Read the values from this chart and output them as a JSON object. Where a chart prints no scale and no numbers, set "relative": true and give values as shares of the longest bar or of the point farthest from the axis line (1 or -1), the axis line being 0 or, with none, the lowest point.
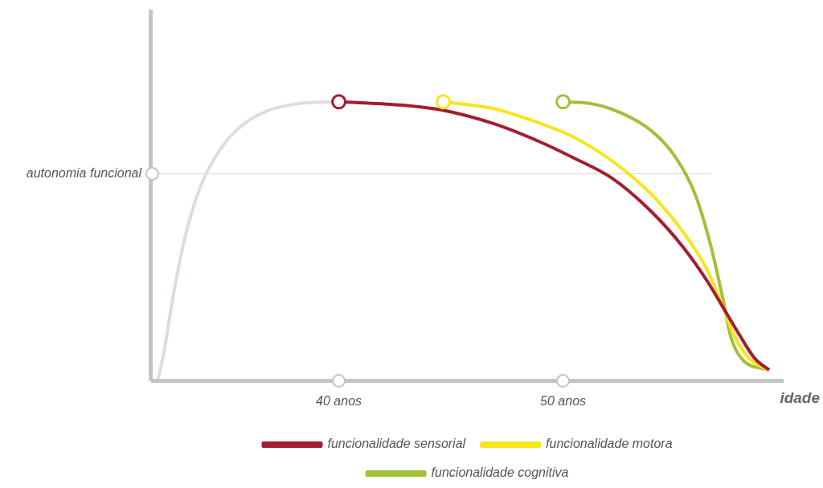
{
  "chart_data": {
    "type": "line",
    "relative": true,
    "xlabel": "idade",
    "xlim": [
      31.7,
      59.8
    ],
    "xticks": [
      {
        "value": 40,
        "label": "40 anos"
      },
      {
        "value": 50,
        "label": "50 anos"
      }
    ],
    "grid": false,
    "legend": "bottom",
    "line_style": "solid",
    "ref_lines": [
      {
        "axis": "y",
        "value": 0.742,
        "label": "autonomia funcional",
        "color": "#d8d8d8"
      }
    ],
    "series": [
      {
        "color": "#dcdce4",
        "x": [
          31.94,
          32.2,
          32.58,
          33.11,
          33.82,
          34.7,
          35.58,
          36.64,
          38.06,
          40
        ],
        "values": [
          0.008,
          0.102,
          0.29,
          0.505,
          0.694,
          0.828,
          0.909,
          0.962,
          0.992,
          1
        ]
      },
      {
        "name": "funcionalidade sensorial",
        "color": "#a51c30",
        "x": [
          40,
          42.65,
          44.63,
          46.89,
          49.01,
          50.42,
          52.19,
          53.96,
          55.37,
          56.43,
          57.14,
          57.84,
          58.55,
          59.19
        ],
        "values": [
          1,
          0.989,
          0.97,
          0.922,
          0.855,
          0.801,
          0.726,
          0.605,
          0.478,
          0.358,
          0.263,
          0.169,
          0.081,
          0.04
        ]
      },
      {
        "name": "funcionalidade motora",
        "color": "#f5e61e",
        "x": [
          44.66,
          46.89,
          49.01,
          50.42,
          52.19,
          53.96,
          55.37,
          56.43,
          57.14,
          57.67,
          58.37,
          59.19
        ],
        "values": [
          1,
          0.976,
          0.922,
          0.876,
          0.788,
          0.667,
          0.532,
          0.398,
          0.263,
          0.156,
          0.075,
          0.04
        ]
      },
      {
        "name": "funcionalidade cognitiva",
        "color": "#a4bf3a",
        "x": [
          50,
          51.13,
          52.54,
          53.96,
          55.02,
          55.9,
          56.61,
          57.14,
          57.49,
          58.02,
          59.19
        ],
        "values": [
          1,
          0.995,
          0.962,
          0.895,
          0.801,
          0.667,
          0.478,
          0.29,
          0.156,
          0.075,
          0.04
        ]
      },
      {
        "type": "scatter",
        "color": "#a51c30",
        "marker": "circle",
        "x": [
          40
        ],
        "values": [
          1
        ]
      },
      {
        "type": "scatter",
        "color": "#f5e61e",
        "marker": "circle",
        "x": [
          44.66
        ],
        "values": [
          1
        ]
      },
      {
        "type": "scatter",
        "color": "#a4bf3a",
        "marker": "circle",
        "x": [
          50
        ],
        "values": [
          1
        ]
      }
    ]
  }
}
